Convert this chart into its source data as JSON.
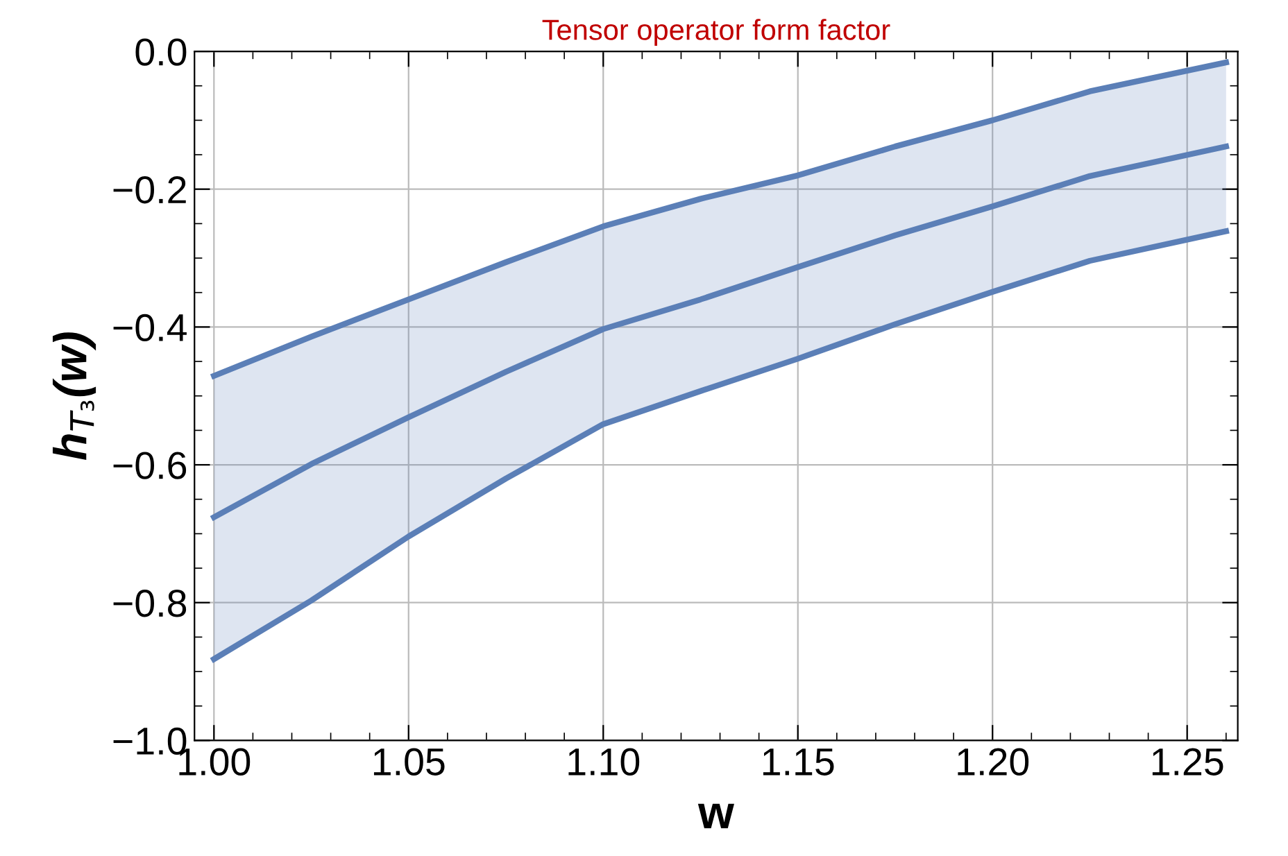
{
  "chart_data": {
    "type": "line",
    "title": "Tensor operator form factor",
    "xlabel": "w",
    "ylabel": "h$_{T₃}$(w)",
    "x": [
      1.0,
      1.025,
      1.05,
      1.075,
      1.1,
      1.125,
      1.15,
      1.175,
      1.2,
      1.225,
      1.26
    ],
    "series": [
      {
        "color": "#5b7fb7",
        "values": [
          -0.471,
          -0.414,
          -0.36,
          -0.306,
          -0.254,
          -0.214,
          -0.18,
          -0.138,
          -0.1,
          -0.058,
          -0.016
        ]
      },
      {
        "color": "#5b7fb7",
        "values": [
          -0.676,
          -0.599,
          -0.531,
          -0.465,
          -0.403,
          -0.36,
          -0.313,
          -0.267,
          -0.225,
          -0.181,
          -0.138
        ],
        "lower": [
          -0.882,
          -0.797,
          -0.704,
          -0.62,
          -0.541,
          -0.493,
          -0.446,
          -0.396,
          -0.349,
          -0.304,
          -0.261
        ],
        "upper": [
          -0.471,
          -0.414,
          -0.36,
          -0.306,
          -0.254,
          -0.214,
          -0.18,
          -0.138,
          -0.1,
          -0.058,
          -0.016
        ]
      },
      {
        "color": "#5b7fb7",
        "values": [
          -0.882,
          -0.797,
          -0.704,
          -0.62,
          -0.541,
          -0.493,
          -0.446,
          -0.396,
          -0.349,
          -0.304,
          -0.261
        ]
      }
    ],
    "xlim": [
      0.995,
      1.263
    ],
    "ylim": [
      -1.0,
      0.0
    ],
    "xticks": [
      {
        "value": 1.0,
        "label": "1.00"
      },
      {
        "value": 1.05,
        "label": "1.05"
      },
      {
        "value": 1.1,
        "label": "1.10"
      },
      {
        "value": 1.15,
        "label": "1.15"
      },
      {
        "value": 1.2,
        "label": "1.20"
      },
      {
        "value": 1.25,
        "label": "1.25"
      }
    ],
    "yticks": [
      {
        "value": -1.0,
        "label": "−1.0"
      },
      {
        "value": -0.8,
        "label": "−0.8"
      },
      {
        "value": -0.6,
        "label": "−0.6"
      },
      {
        "value": -0.4,
        "label": "−0.4"
      },
      {
        "value": -0.2,
        "label": "−0.2"
      },
      {
        "value": 0.0,
        "label": "0.0"
      }
    ],
    "grid": true,
    "legend": false,
    "marker": "none",
    "line_style": "solid"
  }
}
